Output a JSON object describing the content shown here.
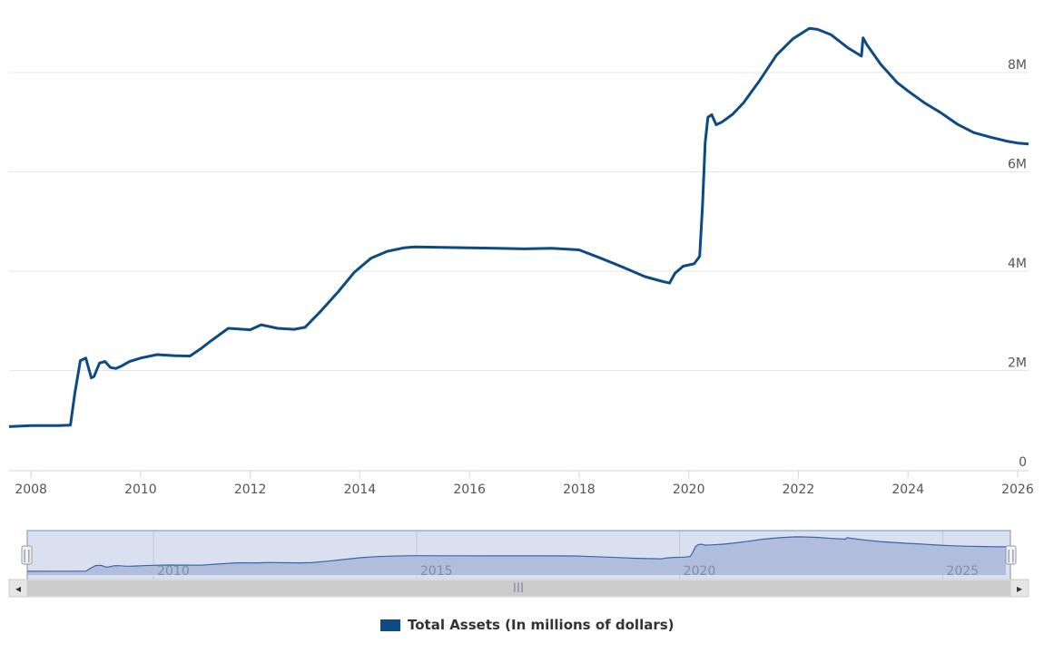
{
  "chart_data": {
    "type": "line",
    "title": "",
    "xlabel": "",
    "ylabel": "",
    "xlim": [
      2007.6,
      2026.2
    ],
    "ylim": [
      0,
      9500000
    ],
    "y_ticks": [
      0,
      2000000,
      4000000,
      6000000,
      8000000
    ],
    "y_tick_labels": [
      "0",
      "2M",
      "4M",
      "6M",
      "8M"
    ],
    "x_ticks": [
      2008,
      2010,
      2012,
      2014,
      2016,
      2018,
      2020,
      2022,
      2024,
      2026
    ],
    "x_tick_labels": [
      "2008",
      "2010",
      "2012",
      "2014",
      "2016",
      "2018",
      "2020",
      "2022",
      "2024",
      "2026"
    ],
    "grid": true,
    "legend": "bottom-center",
    "series": [
      {
        "name": "Total Assets (In millions of dollars)",
        "color": "#0e4a84",
        "x": [
          2007.6,
          2008.0,
          2008.5,
          2008.72,
          2008.8,
          2008.9,
          2009.0,
          2009.1,
          2009.15,
          2009.25,
          2009.35,
          2009.45,
          2009.55,
          2009.65,
          2009.8,
          2010.0,
          2010.3,
          2010.6,
          2010.9,
          2011.1,
          2011.3,
          2011.6,
          2012.0,
          2012.1,
          2012.2,
          2012.5,
          2012.8,
          2013.0,
          2013.3,
          2013.6,
          2013.9,
          2014.2,
          2014.5,
          2014.8,
          2015.0,
          2015.5,
          2016.0,
          2016.5,
          2017.0,
          2017.5,
          2018.0,
          2018.4,
          2018.8,
          2019.2,
          2019.5,
          2019.65,
          2019.75,
          2019.9,
          2020.1,
          2020.2,
          2020.25,
          2020.3,
          2020.35,
          2020.42,
          2020.5,
          2020.6,
          2020.8,
          2021.0,
          2021.3,
          2021.6,
          2021.9,
          2022.2,
          2022.35,
          2022.6,
          2022.9,
          2023.15,
          2023.18,
          2023.25,
          2023.5,
          2023.8,
          2024.0,
          2024.3,
          2024.6,
          2024.9,
          2025.2,
          2025.5,
          2025.8,
          2026.0,
          2026.2
        ],
        "y": [
          870000,
          890000,
          890000,
          900000,
          1550000,
          2200000,
          2250000,
          1850000,
          1880000,
          2150000,
          2180000,
          2060000,
          2040000,
          2090000,
          2180000,
          2250000,
          2320000,
          2300000,
          2290000,
          2440000,
          2610000,
          2850000,
          2820000,
          2870000,
          2920000,
          2850000,
          2830000,
          2870000,
          3210000,
          3580000,
          3980000,
          4260000,
          4400000,
          4470000,
          4490000,
          4480000,
          4470000,
          4460000,
          4450000,
          4460000,
          4430000,
          4260000,
          4080000,
          3890000,
          3800000,
          3760000,
          3960000,
          4100000,
          4150000,
          4300000,
          5300000,
          6600000,
          7100000,
          7150000,
          6950000,
          7000000,
          7160000,
          7390000,
          7850000,
          8350000,
          8680000,
          8890000,
          8870000,
          8760000,
          8500000,
          8330000,
          8700000,
          8560000,
          8170000,
          7800000,
          7630000,
          7390000,
          7190000,
          6960000,
          6790000,
          6700000,
          6620000,
          6580000,
          6560000
        ]
      }
    ]
  },
  "navigator": {
    "tick_labels": [
      "2010",
      "2015",
      "2020",
      "2025"
    ],
    "ticks": [
      2010,
      2015,
      2020,
      2025
    ],
    "range": [
      2007.6,
      2026.2
    ],
    "scroll_left_glyph": "◂",
    "scroll_right_glyph": "▸",
    "scroll_grip_glyph": "III",
    "handle_glyph": "||"
  },
  "legend": {
    "label": "Total Assets (In millions of dollars)",
    "color": "#0e4a84"
  }
}
